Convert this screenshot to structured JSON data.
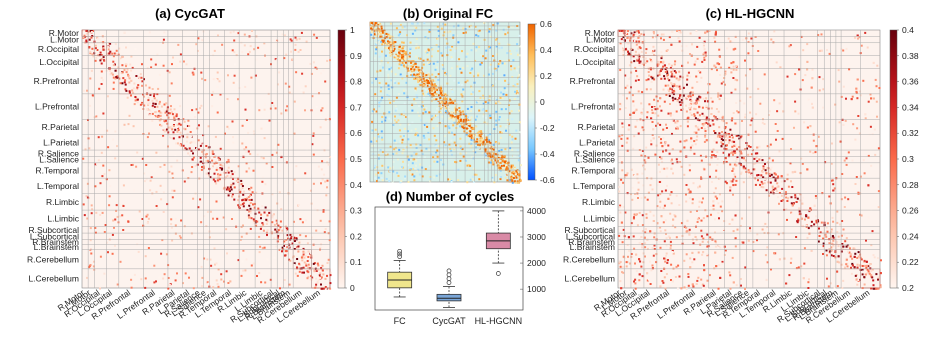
{
  "region_labels_full": [
    "R.Motor",
    "L.Motor",
    "R.Occipital",
    "L.Occipital",
    "R.Prefrontal",
    "L.Prefrontal",
    "R.Parietal",
    "L.Parietal",
    "R.Salience",
    "L.Salience",
    "R.Temporal",
    "L.Temporal",
    "R.Limbic",
    "L.Limbic",
    "R.Subcortical",
    "L.Subcortical",
    "R.Brainstem",
    "L.Brainstem",
    "R.Cerebellum",
    "L.Cerebellum"
  ],
  "region_label_short_motor": "R.Motor",
  "panels": [
    {
      "id": "cycgat",
      "title": "(a) CycGAT",
      "colorbar": {
        "ticks": [
          "0",
          "0.1",
          "0.2",
          "0.3",
          "0.4",
          "0.5",
          "0.6",
          "0.7",
          "0.8",
          "0.9",
          "1"
        ],
        "colors": [
          "#fff5f0",
          "#67000d"
        ]
      }
    },
    {
      "id": "fc",
      "title": "(b) Original FC",
      "colorbar": {
        "ticks": [
          "-0.6",
          "-0.4",
          "-0.2",
          "0",
          "0.2",
          "0.4",
          "0.6"
        ],
        "colors": [
          "#0050ff",
          "#e6f7ff",
          "#fff5c0",
          "#ff7a00"
        ]
      }
    },
    {
      "id": "hlhgcnn",
      "title": "(c) HL-HGCNN",
      "colorbar": {
        "ticks": [
          "0.2",
          "0.22",
          "0.24",
          "0.26",
          "0.28",
          "0.3",
          "0.32",
          "0.34",
          "0.36",
          "0.38",
          "0.4"
        ],
        "colors": [
          "#fff5f0",
          "#67000d"
        ]
      }
    }
  ],
  "fc_region_labels": [
    "R.Motor",
    "L.Motor",
    "R.Occipital",
    "L.Occipital",
    "R.Prefrontal",
    "L.Prefrontal",
    "R.Parietal",
    "L.Parietal",
    "R.Salience",
    "L.Salience",
    "R.Temporal",
    "L.Temporal",
    "R.Limbic",
    "L.Limbic",
    "R.Subcortical",
    "L.Subcortical",
    "R.Brainstem",
    "L.Brainstem",
    "R.Cerebellum",
    "L.Cerebellum"
  ],
  "chart_data": {
    "type": "box",
    "title": "(d) Number of cycles",
    "categories": [
      "FC",
      "CycGAT",
      "HL-HGCNN"
    ],
    "colors": [
      "#f0e68c",
      "#7aa6d8",
      "#d98aa6"
    ],
    "y_ticks": [
      1000,
      2000,
      3000,
      4000
    ],
    "ylim": [
      200,
      4150
    ],
    "boxes": [
      {
        "name": "FC",
        "min": 700,
        "q1": 1050,
        "median": 1350,
        "q3": 1650,
        "max": 2100,
        "outliers": [
          2250,
          2350,
          2450
        ]
      },
      {
        "name": "CycGAT",
        "min": 300,
        "q1": 550,
        "median": 650,
        "q3": 800,
        "max": 1100,
        "outliers": [
          1250,
          1400,
          1550,
          1700
        ]
      },
      {
        "name": "HL-HGCNN",
        "min": 2000,
        "q1": 2550,
        "median": 2850,
        "q3": 3150,
        "max": 4000,
        "outliers": [
          1600
        ]
      }
    ]
  }
}
